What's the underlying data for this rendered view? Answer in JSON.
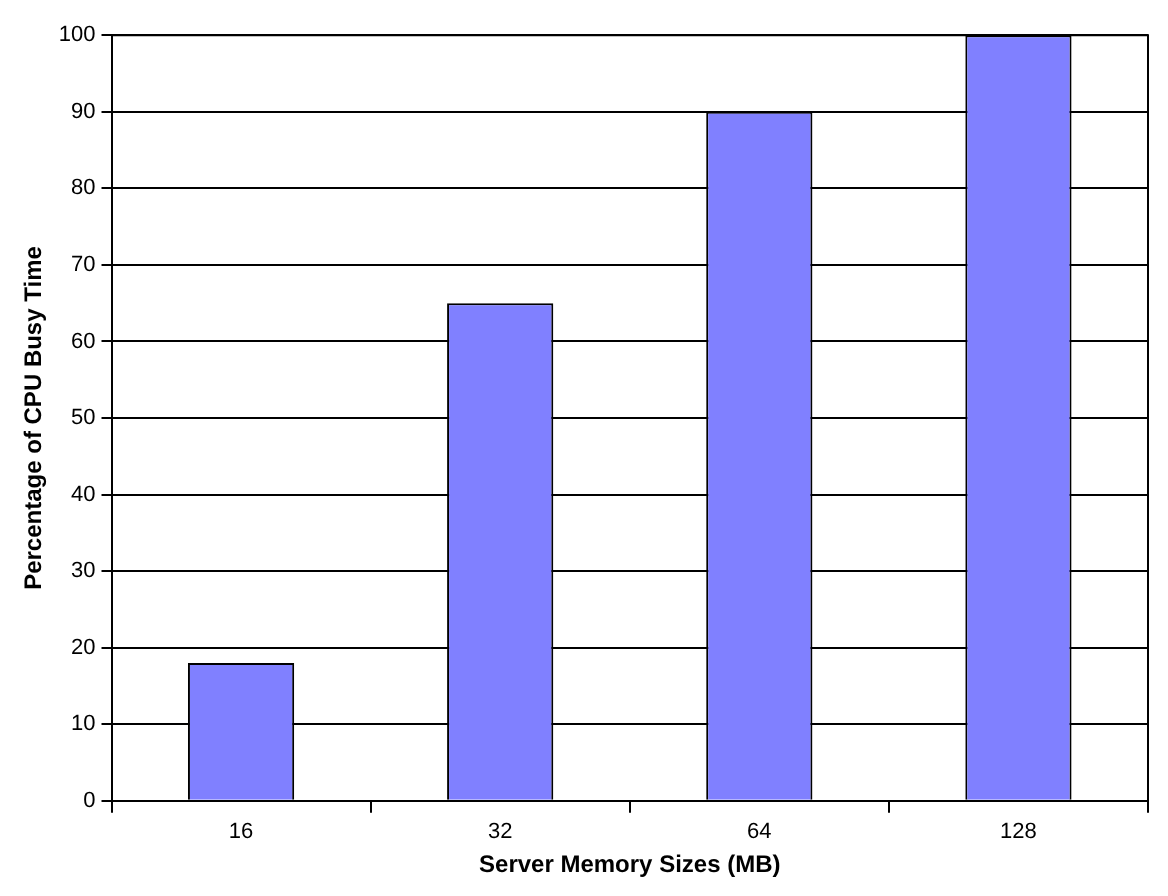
{
  "chart_data": {
    "type": "bar",
    "xlabel": "Server Memory Sizes (MB)",
    "ylabel": "Percentage of CPU Busy Time",
    "categories": [
      "16",
      "32",
      "64",
      "128"
    ],
    "values": [
      18,
      65,
      90,
      100
    ],
    "color": "#8080ff",
    "ylim": [
      0,
      100
    ],
    "yticks": [
      0,
      10,
      20,
      30,
      40,
      50,
      60,
      70,
      80,
      90,
      100
    ],
    "grid": "y",
    "legend": false
  }
}
